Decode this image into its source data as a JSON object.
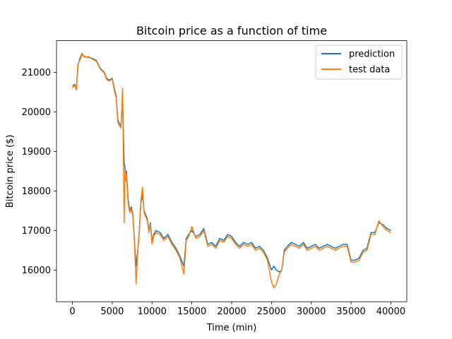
{
  "chart_data": {
    "type": "line",
    "title": "Bitcoin price as a function of time",
    "xlabel": "Time (min)",
    "ylabel": "Bitcoin price ($)",
    "xlim": [
      -2000,
      42000
    ],
    "ylim": [
      15200,
      21800
    ],
    "xticks": [
      0,
      5000,
      10000,
      15000,
      20000,
      25000,
      30000,
      35000,
      40000
    ],
    "yticks": [
      16000,
      17000,
      18000,
      19000,
      20000,
      21000
    ],
    "grid": false,
    "legend_position": "top-right",
    "series": [
      {
        "name": "prediction",
        "color": "#1f77b4",
        "x": [
          0,
          300,
          500,
          700,
          900,
          1200,
          1500,
          2000,
          2500,
          3000,
          3500,
          4000,
          4300,
          4600,
          5000,
          5200,
          5500,
          5700,
          5900,
          6100,
          6300,
          6500,
          6600,
          6700,
          6800,
          6900,
          7000,
          7200,
          7400,
          7600,
          7800,
          8000,
          8200,
          8400,
          8600,
          8800,
          9000,
          9200,
          9400,
          9600,
          9800,
          10000,
          10200,
          10500,
          11000,
          11500,
          12000,
          12500,
          13000,
          13500,
          14000,
          14300,
          14600,
          15000,
          15500,
          16000,
          16500,
          17000,
          17500,
          18000,
          18500,
          19000,
          19500,
          20000,
          20500,
          21000,
          21500,
          22000,
          22500,
          23000,
          23500,
          24000,
          24500,
          25000,
          25300,
          25600,
          26000,
          26300,
          26600,
          27000,
          27500,
          28000,
          28500,
          29000,
          29500,
          30000,
          30500,
          31000,
          31500,
          32000,
          32500,
          33000,
          33500,
          34000,
          34500,
          35000,
          35500,
          36000,
          36500,
          37000,
          37500,
          38000,
          38500,
          39000,
          39500,
          40000
        ],
        "y": [
          20650,
          20700,
          20600,
          21200,
          21300,
          21450,
          21400,
          21380,
          21350,
          21300,
          21100,
          21000,
          20850,
          20800,
          20850,
          20650,
          20400,
          19800,
          19700,
          19650,
          20300,
          18700,
          18600,
          18300,
          18500,
          18100,
          17800,
          17500,
          17600,
          17400,
          16700,
          16100,
          16500,
          17000,
          17700,
          17900,
          17500,
          17400,
          17300,
          17000,
          17200,
          16700,
          16900,
          17000,
          16950,
          16800,
          16900,
          16700,
          16550,
          16350,
          16100,
          16800,
          16900,
          17000,
          16850,
          16900,
          17050,
          16650,
          16700,
          16600,
          16800,
          16750,
          16900,
          16850,
          16700,
          16600,
          16700,
          16650,
          16700,
          16550,
          16600,
          16500,
          16300,
          16000,
          16100,
          16000,
          15950,
          16000,
          16500,
          16600,
          16700,
          16650,
          16600,
          16700,
          16550,
          16600,
          16650,
          16550,
          16600,
          16650,
          16600,
          16550,
          16600,
          16650,
          16650,
          16250,
          16250,
          16300,
          16500,
          16550,
          16950,
          16950,
          17200,
          17150,
          17050,
          17000
        ]
      },
      {
        "name": "test data",
        "color": "#ff7f0e",
        "x": [
          0,
          300,
          500,
          700,
          900,
          1200,
          1500,
          2000,
          2500,
          3000,
          3500,
          4000,
          4300,
          4600,
          5000,
          5200,
          5500,
          5700,
          5900,
          6100,
          6300,
          6500,
          6600,
          6700,
          6800,
          6900,
          7000,
          7200,
          7400,
          7600,
          7800,
          8000,
          8200,
          8400,
          8600,
          8800,
          9000,
          9200,
          9400,
          9600,
          9800,
          10000,
          10200,
          10500,
          11000,
          11500,
          12000,
          12500,
          13000,
          13500,
          14000,
          14300,
          14600,
          15000,
          15500,
          16000,
          16500,
          17000,
          17500,
          18000,
          18500,
          19000,
          19500,
          20000,
          20500,
          21000,
          21500,
          22000,
          22500,
          23000,
          23500,
          24000,
          24500,
          25000,
          25300,
          25600,
          26000,
          26300,
          26600,
          27000,
          27500,
          28000,
          28500,
          29000,
          29500,
          30000,
          30500,
          31000,
          31500,
          32000,
          32500,
          33000,
          33500,
          34000,
          34500,
          35000,
          35500,
          36000,
          36500,
          37000,
          37500,
          38000,
          38500,
          39000,
          39500,
          40000
        ],
        "y": [
          20600,
          20680,
          20550,
          21150,
          21350,
          21480,
          21380,
          21400,
          21330,
          21280,
          21080,
          20980,
          20820,
          20780,
          20830,
          20600,
          20350,
          19750,
          19650,
          19600,
          20600,
          17200,
          18500,
          18250,
          18450,
          18000,
          17700,
          17450,
          17550,
          17350,
          16650,
          15650,
          16450,
          16950,
          17750,
          18100,
          17450,
          17350,
          17250,
          16950,
          17150,
          16650,
          16850,
          16950,
          16900,
          16750,
          16850,
          16650,
          16500,
          16300,
          15900,
          16750,
          16850,
          17100,
          16800,
          16850,
          17000,
          16600,
          16650,
          16550,
          16750,
          16700,
          16850,
          16800,
          16650,
          16550,
          16650,
          16600,
          16650,
          16500,
          16550,
          16450,
          16250,
          15700,
          15550,
          15650,
          15900,
          16000,
          16450,
          16550,
          16650,
          16600,
          16550,
          16650,
          16500,
          16550,
          16600,
          16500,
          16550,
          16600,
          16550,
          16500,
          16550,
          16600,
          16600,
          16200,
          16200,
          16250,
          16450,
          16500,
          16900,
          16900,
          17250,
          17100,
          17000,
          16950
        ]
      }
    ]
  }
}
